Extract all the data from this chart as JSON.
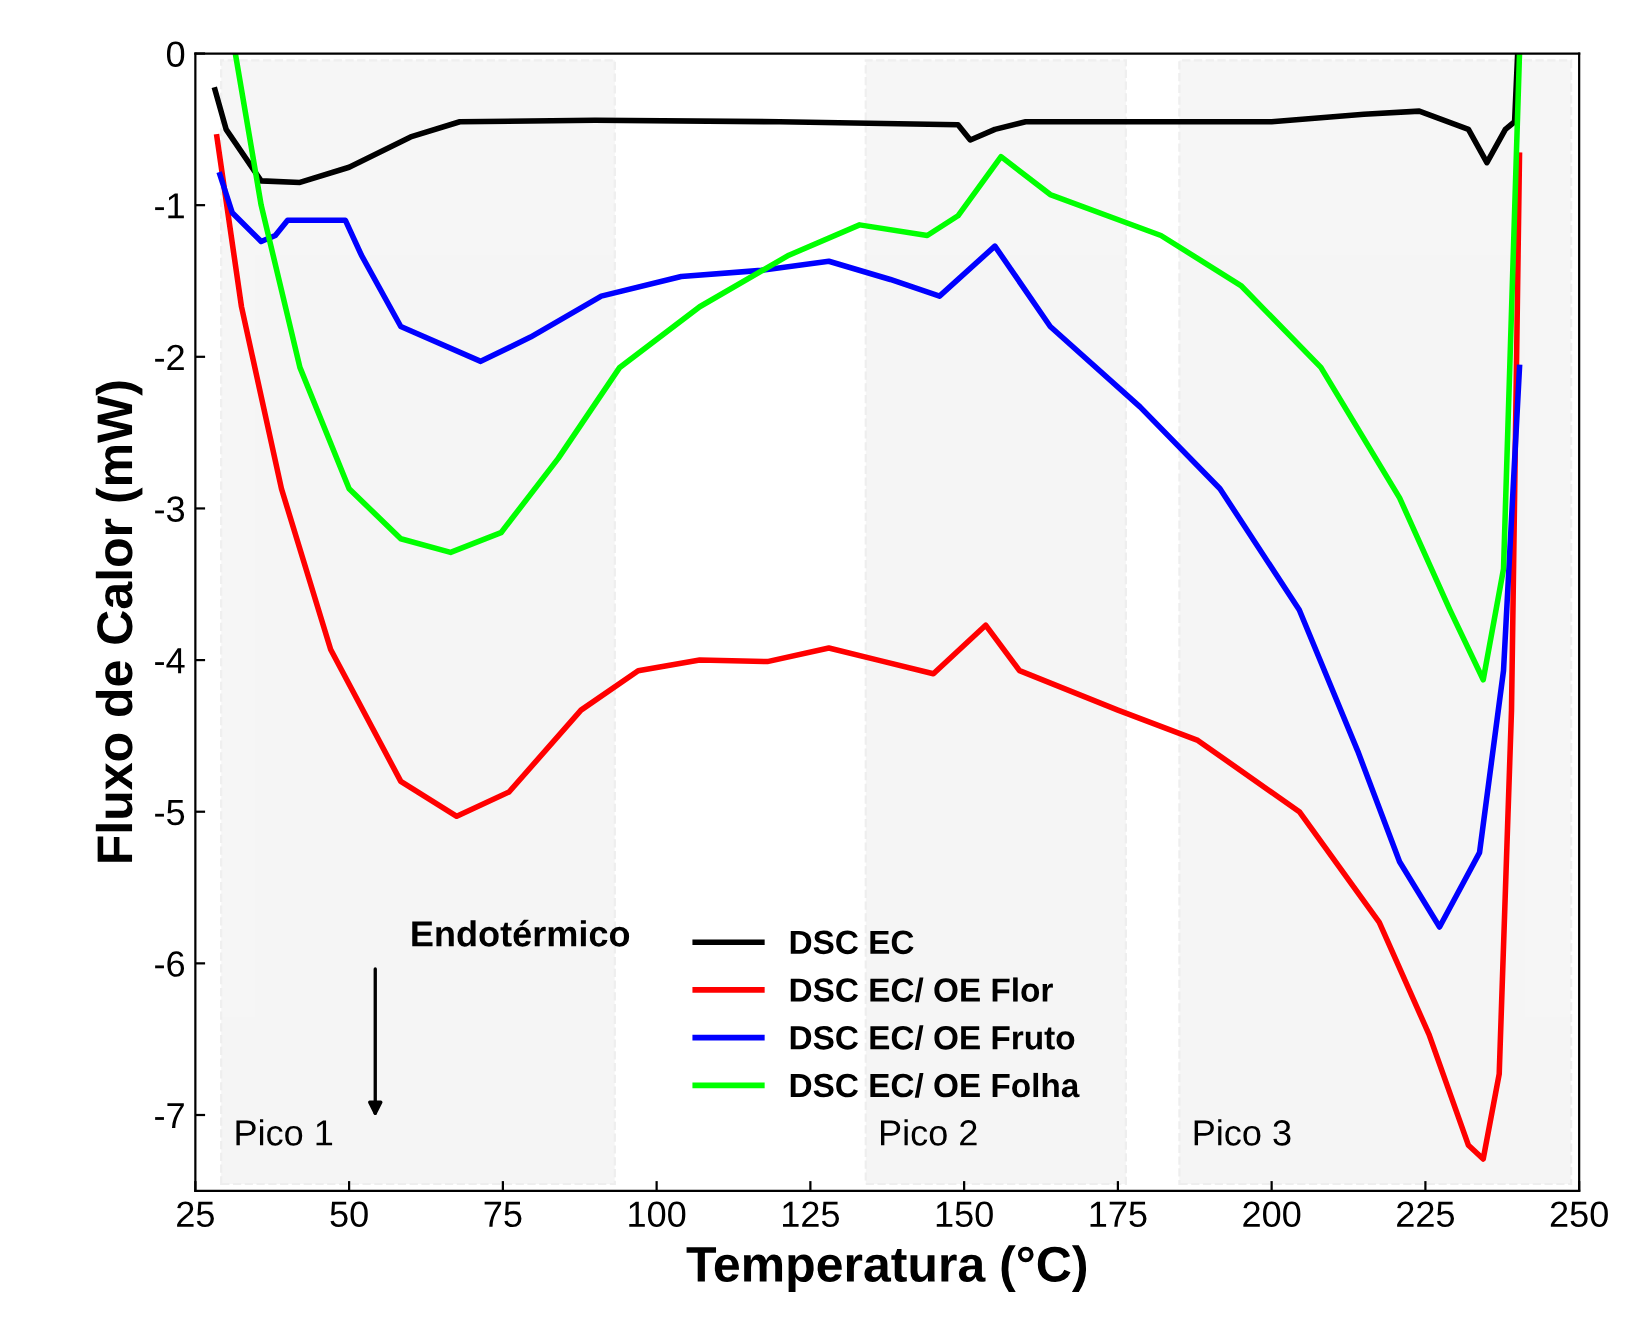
{
  "chart_data": {
    "type": "line",
    "xlabel": "Temperatura (°C)",
    "ylabel": "Fluxo de Calor (mW)",
    "xlim": [
      25,
      250
    ],
    "ylim": [
      -7.5,
      0
    ],
    "xticks": [
      25,
      50,
      75,
      100,
      125,
      150,
      175,
      200,
      225,
      250
    ],
    "yticks": [
      0,
      -1,
      -2,
      -3,
      -4,
      -5,
      -6,
      -7
    ],
    "grid": false,
    "legend": "bottom",
    "marker": "none",
    "line_style": "solid",
    "series": [
      {
        "name": "DSC EC",
        "color": "#000000",
        "x": [
          28.2,
          30,
          35.7,
          42,
          50,
          60,
          68,
          90,
          120,
          149,
          151,
          155,
          160,
          200,
          215,
          224,
          232,
          235,
          238,
          239.5,
          240
        ],
        "values": [
          -0.24,
          -0.5,
          -0.84,
          -0.85,
          -0.75,
          -0.55,
          -0.45,
          -0.44,
          -0.45,
          -0.47,
          -0.57,
          -0.5,
          -0.45,
          -0.45,
          -0.4,
          -0.38,
          -0.5,
          -0.72,
          -0.5,
          -0.45,
          0
        ]
      },
      {
        "name": "DSC EC/ OE Flor",
        "color": "#ff0000",
        "x": [
          28.5,
          32.5,
          39,
          47,
          58.4,
          67.5,
          76,
          87.7,
          97,
          107,
          118,
          128,
          136,
          145,
          153.5,
          159,
          175,
          188,
          204.5,
          217.5,
          225.6,
          232,
          234.4,
          237,
          239,
          240.3
        ],
        "values": [
          -0.55,
          -1.67,
          -2.87,
          -3.93,
          -4.8,
          -5.03,
          -4.87,
          -4.33,
          -4.07,
          -4.0,
          -4.01,
          -3.92,
          -4.0,
          -4.09,
          -3.77,
          -4.07,
          -4.33,
          -4.53,
          -5.0,
          -5.73,
          -6.47,
          -7.2,
          -7.29,
          -6.73,
          -4.33,
          -0.67
        ]
      },
      {
        "name": "DSC EC/ OE Fruto",
        "color": "#0000ff",
        "x": [
          29,
          31,
          35.7,
          38,
          40,
          49.4,
          52,
          58.4,
          71.4,
          79.5,
          91,
          104,
          117,
          128,
          138,
          146,
          155,
          164,
          178.6,
          191.6,
          204.5,
          214,
          220.8,
          227.3,
          233.8,
          237.7,
          240.3
        ],
        "values": [
          -0.8,
          -1.05,
          -1.24,
          -1.2,
          -1.1,
          -1.1,
          -1.33,
          -1.8,
          -2.03,
          -1.87,
          -1.6,
          -1.47,
          -1.43,
          -1.37,
          -1.49,
          -1.6,
          -1.27,
          -1.8,
          -2.33,
          -2.87,
          -3.67,
          -4.6,
          -5.33,
          -5.76,
          -5.27,
          -4.07,
          -2.07
        ]
      },
      {
        "name": "DSC EC/ OE Folha",
        "color": "#00ff00",
        "x": [
          31.5,
          35.7,
          42,
          50,
          58.4,
          66.5,
          74.7,
          84,
          94,
          107,
          121.5,
          133,
          144,
          149,
          156,
          164,
          182,
          195,
          208,
          220.8,
          229,
          234.4,
          237.7,
          240.3
        ],
        "values": [
          0,
          -1.0,
          -2.07,
          -2.87,
          -3.2,
          -3.29,
          -3.16,
          -2.67,
          -2.07,
          -1.67,
          -1.33,
          -1.13,
          -1.2,
          -1.07,
          -0.68,
          -0.93,
          -1.2,
          -1.53,
          -2.07,
          -2.93,
          -3.67,
          -4.13,
          -3.4,
          0
        ]
      }
    ],
    "bands": [
      {
        "axis": "x",
        "from": 29.2,
        "to": 93.2,
        "label": "Pico 1"
      },
      {
        "axis": "x",
        "from": 134,
        "to": 176.3,
        "label": "Pico 2"
      },
      {
        "axis": "x",
        "from": 185,
        "to": 248.7,
        "label": "Pico 3"
      }
    ],
    "annotations": [
      "Endotérmico"
    ]
  }
}
